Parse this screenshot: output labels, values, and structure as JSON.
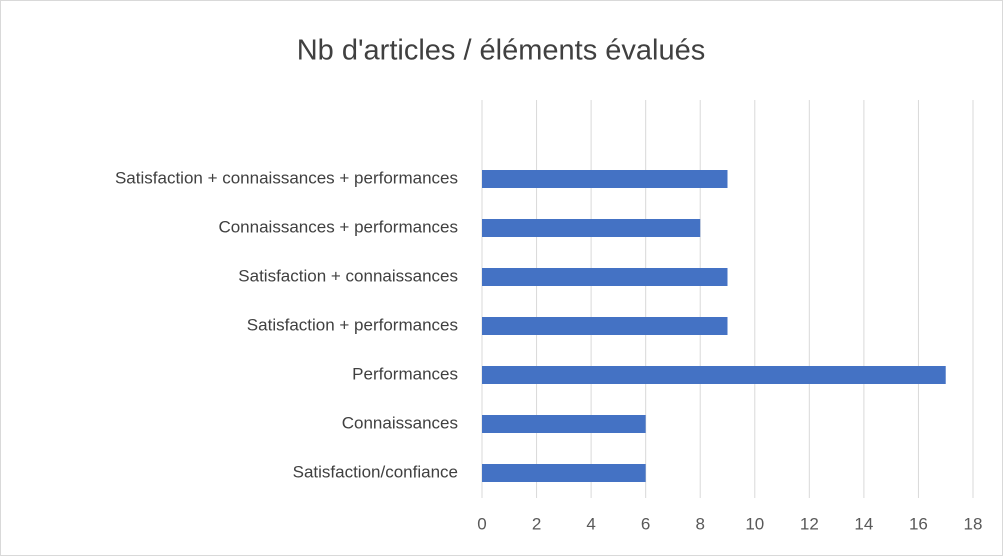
{
  "chart_data": {
    "type": "barh",
    "title": "Nb d'articles / éléments évalués",
    "categories": [
      "Satisfaction/confiance",
      "Connaissances",
      "Performances",
      "Satisfaction + performances",
      "Satisfaction + connaissances",
      "Connaissances + performances",
      "Satisfaction + connaissances + performances"
    ],
    "values": [
      6,
      6,
      17,
      9,
      9,
      8,
      9
    ],
    "color": "#4472c4",
    "xlim": [
      0,
      18
    ],
    "xticks": [
      0,
      2,
      4,
      6,
      8,
      10,
      12,
      14,
      16,
      18
    ],
    "grid": true
  }
}
